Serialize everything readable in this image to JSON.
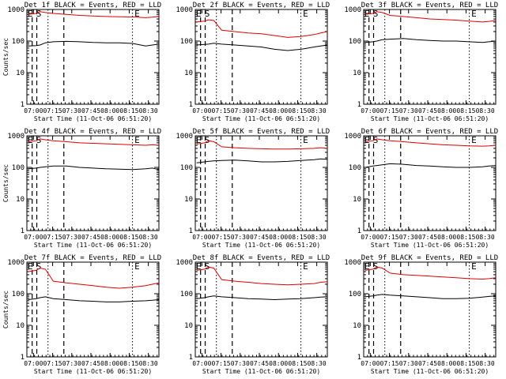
{
  "page": {
    "background": "#ffffff"
  },
  "colors": {
    "events": "#000000",
    "lld": "#e00000",
    "axes": "#000000"
  },
  "shared": {
    "xlabel": "Start Time (11-Oct-06 06:51:20)",
    "ylabel": "Counts/sec",
    "xtick_labels": [
      "07:00",
      "07:15",
      "07:30",
      "07:45",
      "08:00",
      "08:15",
      "08:30"
    ],
    "ytick_labels": [
      "1",
      "10",
      "100",
      "1000"
    ],
    "marker_labels": [
      "E",
      "S",
      "E"
    ]
  },
  "chart_data": [
    {
      "type": "line",
      "title": "Det 1f BLACK = Events, RED = LLD",
      "xlim": [
        0,
        100
      ],
      "ylim": [
        1,
        1000
      ],
      "scale_y": "log",
      "series": [
        {
          "name": "BLACK = Events",
          "color": "#000000",
          "x": [
            1,
            7,
            10,
            14,
            20,
            30,
            40,
            50,
            60,
            70,
            80,
            90,
            95,
            100
          ],
          "values": [
            70,
            72,
            75,
            88,
            95,
            98,
            95,
            90,
            88,
            88,
            84,
            70,
            75,
            80
          ]
        },
        {
          "name": "RED = LLD",
          "color": "#e00000",
          "x": [
            1,
            7,
            10,
            14,
            20,
            30,
            40,
            50,
            60,
            70,
            80,
            90,
            95,
            100
          ],
          "values": [
            700,
            750,
            850,
            800,
            750,
            700,
            650,
            620,
            600,
            590,
            580,
            550,
            570,
            600
          ]
        }
      ]
    },
    {
      "type": "line",
      "title": "Det 2f BLACK = Events, RED = LLD",
      "xlim": [
        0,
        100
      ],
      "ylim": [
        1,
        1000
      ],
      "scale_y": "log",
      "series": [
        {
          "name": "BLACK = Events",
          "color": "#000000",
          "x": [
            1,
            7,
            10,
            14,
            20,
            30,
            40,
            50,
            60,
            70,
            80,
            90,
            95,
            100
          ],
          "values": [
            75,
            78,
            80,
            85,
            80,
            75,
            70,
            65,
            55,
            50,
            55,
            65,
            70,
            75
          ]
        },
        {
          "name": "RED = LLD",
          "color": "#e00000",
          "x": [
            1,
            7,
            10,
            14,
            20,
            30,
            40,
            50,
            60,
            70,
            80,
            90,
            95,
            100
          ],
          "values": [
            400,
            430,
            470,
            450,
            220,
            200,
            180,
            170,
            150,
            130,
            140,
            160,
            180,
            200
          ]
        }
      ]
    },
    {
      "type": "line",
      "title": "Det 3f BLACK = Events, RED = LLD",
      "xlim": [
        0,
        100
      ],
      "ylim": [
        1,
        1000
      ],
      "scale_y": "log",
      "series": [
        {
          "name": "BLACK = Events",
          "color": "#000000",
          "x": [
            1,
            7,
            10,
            14,
            20,
            30,
            40,
            50,
            60,
            70,
            80,
            90,
            95,
            100
          ],
          "values": [
            90,
            95,
            100,
            110,
            115,
            120,
            110,
            105,
            100,
            100,
            95,
            90,
            95,
            100
          ]
        },
        {
          "name": "RED = LLD",
          "color": "#e00000",
          "x": [
            1,
            7,
            10,
            14,
            20,
            30,
            40,
            50,
            60,
            70,
            80,
            90,
            95,
            100
          ],
          "values": [
            700,
            750,
            850,
            800,
            650,
            600,
            550,
            500,
            480,
            460,
            430,
            400,
            420,
            450
          ]
        }
      ]
    },
    {
      "type": "line",
      "title": "Det 4f BLACK = Events, RED = LLD",
      "xlim": [
        0,
        100
      ],
      "ylim": [
        1,
        1000
      ],
      "scale_y": "log",
      "series": [
        {
          "name": "BLACK = Events",
          "color": "#000000",
          "x": [
            1,
            7,
            10,
            14,
            20,
            30,
            40,
            50,
            60,
            70,
            80,
            90,
            95,
            100
          ],
          "values": [
            90,
            95,
            100,
            105,
            110,
            110,
            100,
            95,
            90,
            88,
            85,
            90,
            95,
            85
          ]
        },
        {
          "name": "RED = LLD",
          "color": "#e00000",
          "x": [
            1,
            7,
            10,
            14,
            20,
            30,
            40,
            50,
            60,
            70,
            80,
            90,
            95,
            100
          ],
          "values": [
            650,
            700,
            800,
            750,
            700,
            650,
            600,
            580,
            560,
            540,
            520,
            500,
            520,
            500
          ]
        }
      ]
    },
    {
      "type": "line",
      "title": "Det 5f BLACK = Events, RED = LLD",
      "xlim": [
        0,
        100
      ],
      "ylim": [
        1,
        1000
      ],
      "scale_y": "log",
      "series": [
        {
          "name": "BLACK = Events",
          "color": "#000000",
          "x": [
            1,
            7,
            10,
            14,
            20,
            30,
            40,
            50,
            60,
            70,
            80,
            90,
            95,
            100
          ],
          "values": [
            140,
            150,
            155,
            160,
            165,
            170,
            160,
            150,
            150,
            155,
            165,
            175,
            185,
            180
          ]
        },
        {
          "name": "RED = LLD",
          "color": "#e00000",
          "x": [
            1,
            7,
            10,
            14,
            20,
            30,
            40,
            50,
            60,
            70,
            80,
            90,
            95,
            100
          ],
          "values": [
            550,
            600,
            700,
            650,
            450,
            420,
            400,
            390,
            380,
            380,
            390,
            400,
            420,
            400
          ]
        }
      ]
    },
    {
      "type": "line",
      "title": "Det 6f BLACK = Events, RED = LLD",
      "xlim": [
        0,
        100
      ],
      "ylim": [
        1,
        1000
      ],
      "scale_y": "log",
      "series": [
        {
          "name": "BLACK = Events",
          "color": "#000000",
          "x": [
            1,
            7,
            10,
            14,
            20,
            30,
            40,
            50,
            60,
            70,
            80,
            90,
            95,
            100
          ],
          "values": [
            100,
            110,
            115,
            120,
            130,
            125,
            115,
            110,
            105,
            100,
            100,
            105,
            110,
            115
          ]
        },
        {
          "name": "RED = LLD",
          "color": "#e00000",
          "x": [
            1,
            7,
            10,
            14,
            20,
            30,
            40,
            50,
            60,
            70,
            80,
            90,
            95,
            100
          ],
          "values": [
            650,
            700,
            800,
            750,
            700,
            650,
            600,
            560,
            520,
            500,
            480,
            470,
            480,
            500
          ]
        }
      ]
    },
    {
      "type": "line",
      "title": "Det 7f BLACK = Events, RED = LLD",
      "xlim": [
        0,
        100
      ],
      "ylim": [
        1,
        1000
      ],
      "scale_y": "log",
      "series": [
        {
          "name": "BLACK = Events",
          "color": "#000000",
          "x": [
            1,
            7,
            10,
            14,
            20,
            30,
            40,
            50,
            60,
            70,
            80,
            90,
            95,
            100
          ],
          "values": [
            65,
            70,
            75,
            80,
            70,
            65,
            60,
            58,
            55,
            55,
            58,
            60,
            62,
            65
          ]
        },
        {
          "name": "RED = LLD",
          "color": "#e00000",
          "x": [
            1,
            7,
            10,
            14,
            20,
            30,
            40,
            50,
            60,
            70,
            80,
            90,
            95,
            100
          ],
          "values": [
            500,
            550,
            650,
            600,
            250,
            220,
            200,
            180,
            160,
            150,
            160,
            180,
            200,
            220
          ]
        }
      ]
    },
    {
      "type": "line",
      "title": "Det 8f BLACK = Events, RED = LLD",
      "xlim": [
        0,
        100
      ],
      "ylim": [
        1,
        1000
      ],
      "scale_y": "log",
      "series": [
        {
          "name": "BLACK = Events",
          "color": "#000000",
          "x": [
            1,
            7,
            10,
            14,
            20,
            30,
            40,
            50,
            60,
            70,
            80,
            90,
            95,
            100
          ],
          "values": [
            70,
            75,
            80,
            85,
            80,
            75,
            70,
            68,
            65,
            68,
            70,
            75,
            78,
            80
          ]
        },
        {
          "name": "RED = LLD",
          "color": "#e00000",
          "x": [
            1,
            7,
            10,
            14,
            20,
            30,
            40,
            50,
            60,
            70,
            80,
            90,
            95,
            100
          ],
          "values": [
            550,
            600,
            700,
            650,
            280,
            250,
            230,
            210,
            200,
            190,
            200,
            210,
            230,
            240
          ]
        }
      ]
    },
    {
      "type": "line",
      "title": "Det 9f BLACK = Events, RED = LLD",
      "xlim": [
        0,
        100
      ],
      "ylim": [
        1,
        1000
      ],
      "scale_y": "log",
      "series": [
        {
          "name": "BLACK = Events",
          "color": "#000000",
          "x": [
            1,
            7,
            10,
            14,
            20,
            30,
            40,
            50,
            60,
            70,
            80,
            90,
            95,
            100
          ],
          "values": [
            80,
            85,
            90,
            95,
            90,
            85,
            80,
            75,
            70,
            70,
            72,
            78,
            82,
            85
          ]
        },
        {
          "name": "RED = LLD",
          "color": "#e00000",
          "x": [
            1,
            7,
            10,
            14,
            20,
            30,
            40,
            50,
            60,
            70,
            80,
            90,
            95,
            100
          ],
          "values": [
            550,
            600,
            700,
            650,
            450,
            400,
            380,
            360,
            340,
            320,
            300,
            290,
            300,
            320
          ]
        }
      ]
    }
  ]
}
